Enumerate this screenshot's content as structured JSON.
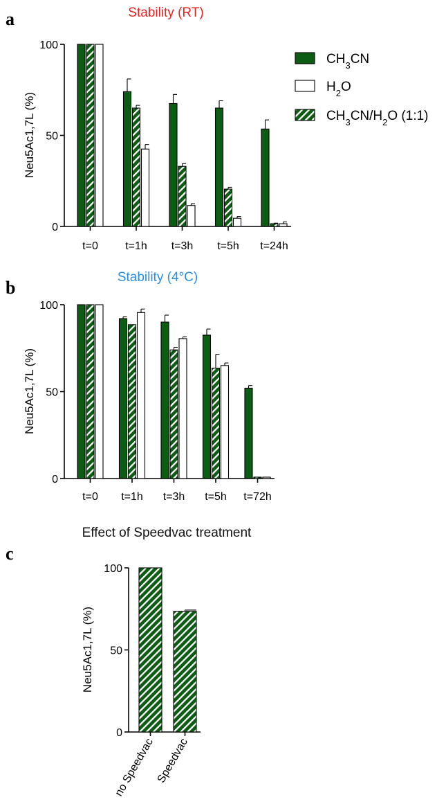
{
  "colors": {
    "dark_green": "#0d5c14",
    "white": "#ffffff",
    "title_red": "#e8211f",
    "title_blue": "#2a8ee0",
    "title_black": "#111111",
    "axis": "#000000"
  },
  "legend": {
    "items": [
      {
        "series_key": "ch3cn",
        "parts": [
          [
            "CH",
            0
          ],
          [
            "3",
            1
          ],
          [
            "CN",
            0
          ]
        ]
      },
      {
        "series_key": "h2o",
        "parts": [
          [
            "H",
            0
          ],
          [
            "2",
            1
          ],
          [
            "O",
            0
          ]
        ]
      },
      {
        "series_key": "mix",
        "parts": [
          [
            "CH",
            0
          ],
          [
            "3",
            1
          ],
          [
            "CN/H",
            0
          ],
          [
            "2",
            1
          ],
          [
            "O (1:1)",
            0
          ]
        ]
      }
    ]
  },
  "chart_data": [
    {
      "panel_label": "a",
      "type": "bar",
      "title": "Stability (RT)",
      "title_color_key": "title_red",
      "ylabel": "Neu5Ac1,7L  (%)",
      "ylim": [
        0,
        100
      ],
      "yticks": [
        0,
        50,
        100
      ],
      "categories": [
        "t=0",
        "t=1h",
        "t=3h",
        "t=5h",
        "t=24h"
      ],
      "series": [
        {
          "name": "CH3CN",
          "key": "ch3cn",
          "style": "solid",
          "values": [
            100,
            74,
            67.5,
            65,
            53.5
          ],
          "errors": [
            0,
            7,
            5,
            4,
            5
          ]
        },
        {
          "name": "CH3CN/H2O (1:1)",
          "key": "mix",
          "style": "hatch",
          "values": [
            100,
            65,
            33,
            20.5,
            1.5
          ],
          "errors": [
            0,
            1.5,
            1.5,
            1,
            0.3
          ]
        },
        {
          "name": "H2O",
          "key": "h2o",
          "style": "white",
          "values": [
            100,
            42.5,
            11.5,
            4.5,
            1.5
          ],
          "errors": [
            0,
            2.5,
            1,
            1,
            1
          ]
        }
      ]
    },
    {
      "panel_label": "b",
      "type": "bar",
      "title": "Stability (4°C)",
      "title_color_key": "title_blue",
      "ylabel": "Neu5Ac1,7L  (%)",
      "ylim": [
        0,
        100
      ],
      "yticks": [
        0,
        50,
        100
      ],
      "categories": [
        "t=0",
        "t=1h",
        "t=3h",
        "t=5h",
        "t=72h"
      ],
      "series": [
        {
          "name": "CH3CN",
          "key": "ch3cn",
          "style": "solid",
          "values": [
            100,
            92,
            90,
            82.5,
            52
          ],
          "errors": [
            0,
            1,
            4,
            3.5,
            1.5
          ]
        },
        {
          "name": "CH3CN/H2O (1:1)",
          "key": "mix",
          "style": "hatch",
          "values": [
            100,
            88.5,
            74,
            63.5,
            0.8
          ],
          "errors": [
            0,
            0,
            1.5,
            8,
            0
          ]
        },
        {
          "name": "H2O",
          "key": "h2o",
          "style": "white",
          "values": [
            100,
            95.5,
            80.5,
            65,
            0.8
          ],
          "errors": [
            0,
            2,
            1,
            1.5,
            0
          ]
        }
      ]
    },
    {
      "panel_label": "c",
      "type": "bar",
      "title": "Effect of Speedvac treatment",
      "title_color_key": "title_black",
      "ylabel": "Neu5Ac1,7L  (%)",
      "ylim": [
        0,
        100
      ],
      "yticks": [
        0,
        50,
        100
      ],
      "categories": [
        "no Speedvac",
        "Speedvac"
      ],
      "series": [
        {
          "name": "CH3CN/H2O (1:1)",
          "key": "mix",
          "style": "hatch",
          "values": [
            100,
            73.5
          ],
          "errors": [
            0,
            0.8
          ]
        }
      ]
    }
  ]
}
